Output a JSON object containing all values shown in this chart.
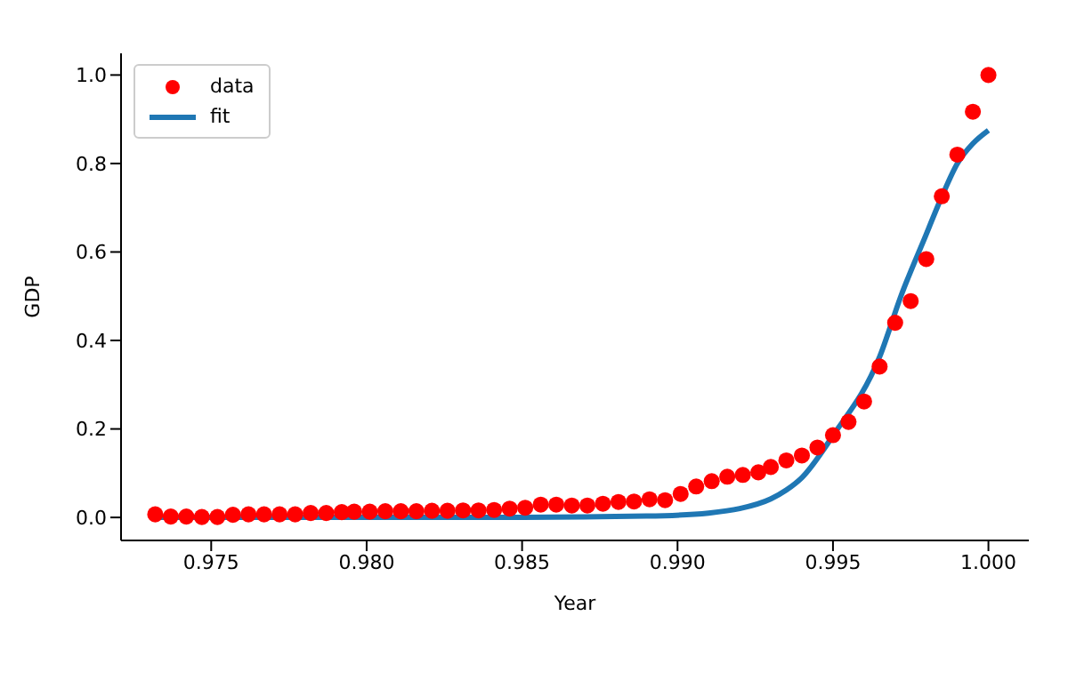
{
  "chart_data": {
    "type": "scatter",
    "xlabel": "Year",
    "ylabel": "GDP",
    "xlim": [
      0.9721,
      1.0013
    ],
    "ylim": [
      -0.052,
      1.049
    ],
    "xticks": [
      {
        "value": 0.975,
        "label": "0.975"
      },
      {
        "value": 0.98,
        "label": "0.980"
      },
      {
        "value": 0.985,
        "label": "0.985"
      },
      {
        "value": 0.99,
        "label": "0.990"
      },
      {
        "value": 0.995,
        "label": "0.995"
      },
      {
        "value": 1.0,
        "label": "1.000"
      }
    ],
    "yticks": [
      {
        "value": 0,
        "label": "0.0"
      },
      {
        "value": 0.2,
        "label": "0.2"
      },
      {
        "value": 0.4,
        "label": "0.4"
      },
      {
        "value": 0.6,
        "label": "0.6"
      },
      {
        "value": 0.8,
        "label": "0.8"
      },
      {
        "value": 1.0,
        "label": "1.0"
      }
    ],
    "legend": "top left",
    "grid": false,
    "series": [
      {
        "name": "data",
        "marker": "circle",
        "color": "#ff0000",
        "x": [
          0.9732,
          0.9737,
          0.9742,
          0.9747,
          0.9752,
          0.9757,
          0.9762,
          0.9767,
          0.9772,
          0.9777,
          0.9782,
          0.9787,
          0.9792,
          0.9796,
          0.9801,
          0.9806,
          0.9811,
          0.9816,
          0.9821,
          0.9826,
          0.9831,
          0.9836,
          0.9841,
          0.9846,
          0.9851,
          0.9856,
          0.9861,
          0.9866,
          0.9871,
          0.9876,
          0.9881,
          0.9886,
          0.9891,
          0.9896,
          0.9901,
          0.9906,
          0.9911,
          0.9916,
          0.9921,
          0.9926,
          0.993,
          0.9935,
          0.994,
          0.9945,
          0.995,
          0.9955,
          0.996,
          0.9965,
          0.997,
          0.9975,
          0.998,
          0.9985,
          0.999,
          0.9995,
          1.0
        ],
        "values": [
          0.007,
          0.002,
          0.002,
          0.001,
          0.001,
          0.006,
          0.007,
          0.007,
          0.007,
          0.007,
          0.01,
          0.01,
          0.012,
          0.013,
          0.013,
          0.014,
          0.014,
          0.014,
          0.015,
          0.015,
          0.016,
          0.016,
          0.017,
          0.02,
          0.022,
          0.029,
          0.029,
          0.027,
          0.027,
          0.031,
          0.035,
          0.036,
          0.041,
          0.039,
          0.053,
          0.07,
          0.082,
          0.092,
          0.096,
          0.102,
          0.114,
          0.129,
          0.14,
          0.158,
          0.186,
          0.216,
          0.262,
          0.341,
          0.44,
          0.489,
          0.584,
          0.726,
          0.82,
          0.917,
          1.0
        ]
      },
      {
        "name": "fit",
        "type": "line",
        "line_style": "solid",
        "marker": "none",
        "color": "#1f77b4",
        "x": [
          0.9732,
          0.985,
          0.989,
          0.991,
          0.992,
          0.993,
          0.9935,
          0.994,
          0.995,
          0.9965,
          0.9972,
          0.998,
          0.9985,
          0.999,
          0.9995,
          1.0
        ],
        "values": [
          0.0,
          0.0,
          0.003,
          0.01,
          0.02,
          0.042,
          0.062,
          0.09,
          0.185,
          0.363,
          0.503,
          0.64,
          0.725,
          0.8,
          0.845,
          0.875
        ]
      }
    ]
  }
}
